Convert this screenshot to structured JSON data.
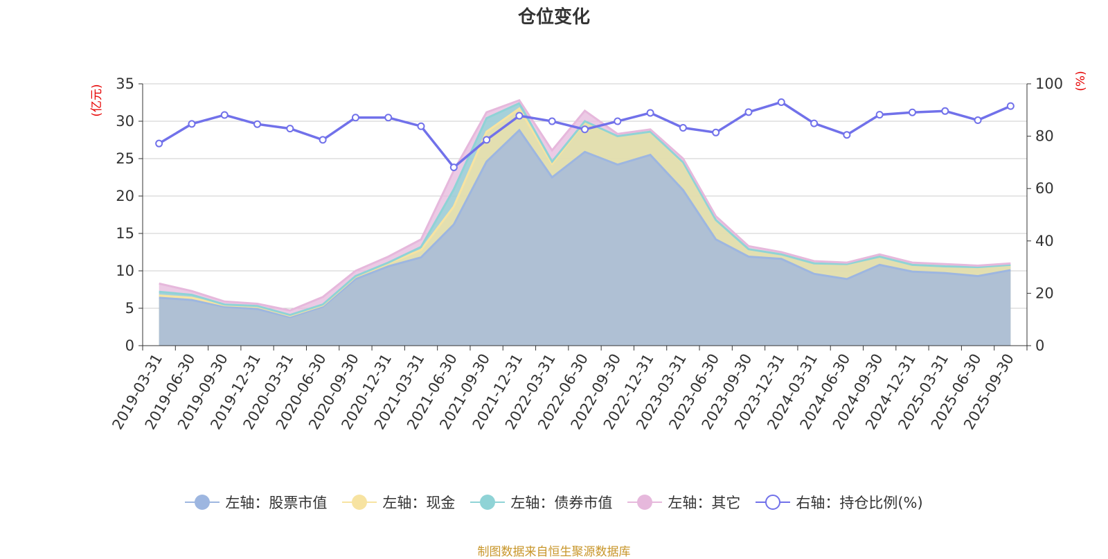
{
  "chart_data": {
    "type": "area",
    "title": "仓位变化",
    "left_unit": "(亿元)",
    "right_unit": "(%)",
    "categories": [
      "2019-03-31",
      "2019-06-30",
      "2019-09-30",
      "2019-12-31",
      "2020-03-31",
      "2020-06-30",
      "2020-09-30",
      "2020-12-31",
      "2021-03-31",
      "2021-06-30",
      "2021-09-30",
      "2021-12-31",
      "2022-03-31",
      "2022-06-30",
      "2022-09-30",
      "2022-12-31",
      "2023-03-31",
      "2023-06-30",
      "2023-09-30",
      "2023-12-31",
      "2024-03-31",
      "2024-06-30",
      "2024-09-30",
      "2024-12-31",
      "2025-03-31",
      "2025-06-30",
      "2025-09-30"
    ],
    "left_ylim": [
      0,
      35
    ],
    "left_ticks": [
      "0",
      "5",
      "10",
      "15",
      "20",
      "25",
      "30",
      "35"
    ],
    "right_ylim": [
      0,
      100
    ],
    "right_ticks": [
      "0",
      "20",
      "40",
      "60",
      "80",
      "100"
    ],
    "grid": true,
    "legend_position": "bottom",
    "series": [
      {
        "name": "左轴：股票市值",
        "axis": "left",
        "stack": true,
        "color": "#9db6e0",
        "values": [
          6.4,
          6.1,
          5.2,
          4.9,
          3.8,
          5.2,
          8.9,
          10.6,
          11.8,
          16.2,
          24.6,
          28.8,
          22.5,
          25.9,
          24.2,
          25.5,
          20.8,
          14.2,
          11.9,
          11.6,
          9.6,
          8.9,
          10.8,
          9.9,
          9.7,
          9.3,
          10.1
        ]
      },
      {
        "name": "左轴：现金",
        "axis": "left",
        "stack": true,
        "color": "#f7e3a1",
        "values": [
          0.3,
          0.3,
          0.2,
          0.3,
          0.2,
          0.2,
          0.3,
          0.4,
          1.0,
          2.4,
          4.0,
          2.9,
          1.8,
          4.0,
          3.8,
          3.1,
          3.6,
          2.6,
          1.0,
          0.6,
          1.4,
          2.0,
          1.1,
          0.9,
          0.9,
          1.2,
          0.7
        ]
      },
      {
        "name": "左轴：债券市值",
        "axis": "left",
        "stack": true,
        "color": "#8fd3d6",
        "values": [
          0.5,
          0.4,
          0.1,
          0.1,
          0.1,
          0.1,
          0.1,
          0.1,
          0.4,
          2.3,
          1.8,
          0.7,
          0.3,
          0.1,
          0.0,
          0.0,
          0.1,
          0.0,
          0.0,
          0.0,
          0.0,
          0.0,
          0.0,
          0.0,
          0.0,
          0.0,
          0.0
        ]
      },
      {
        "name": "左轴：其它",
        "axis": "left",
        "stack": true,
        "color": "#e6b8dc",
        "values": [
          1.1,
          0.5,
          0.4,
          0.3,
          0.6,
          1.0,
          0.7,
          0.8,
          1.0,
          2.5,
          0.8,
          0.4,
          1.5,
          1.4,
          0.3,
          0.3,
          0.5,
          0.5,
          0.4,
          0.3,
          0.3,
          0.2,
          0.3,
          0.3,
          0.3,
          0.2,
          0.2
        ]
      },
      {
        "name": "右轴：持仓比例(%)",
        "axis": "right",
        "stack": false,
        "color": "#7171ea",
        "values": [
          77.2,
          84.7,
          88.1,
          84.6,
          82.9,
          78.6,
          87.1,
          87.1,
          83.8,
          68.1,
          78.6,
          87.8,
          85.7,
          82.6,
          85.7,
          88.9,
          83.2,
          81.4,
          89.2,
          93.0,
          84.9,
          80.5,
          88.2,
          89.1,
          89.6,
          86.1,
          91.5
        ]
      }
    ]
  },
  "footer": {
    "source": "制图数据来自恒生聚源数据库"
  }
}
